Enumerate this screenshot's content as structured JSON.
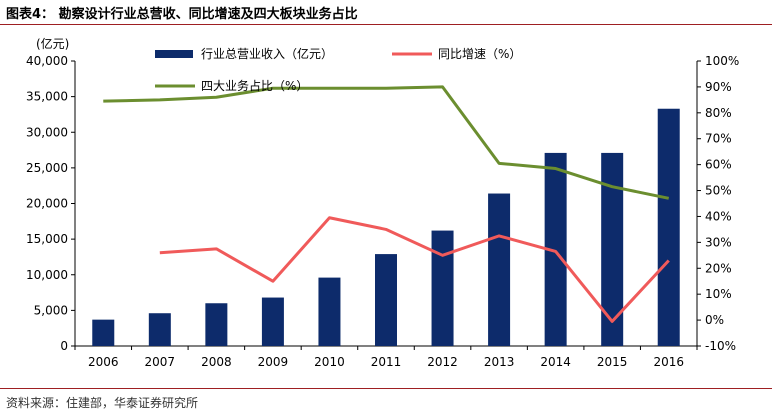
{
  "figure": {
    "title": "图表4：  勘察设计行业总营收、同比增速及四大板块业务占比",
    "source": "资料来源：住建部，华泰证券研究所"
  },
  "chart_data": {
    "type": "bar",
    "categories": [
      "2006",
      "2007",
      "2008",
      "2009",
      "2010",
      "2011",
      "2012",
      "2013",
      "2014",
      "2015",
      "2016"
    ],
    "y_left": {
      "unit_label": "(亿元)",
      "range": [
        0,
        40000
      ],
      "ticks": [
        "0",
        "5,000",
        "10,000",
        "15,000",
        "20,000",
        "25,000",
        "30,000",
        "35,000",
        "40,000"
      ]
    },
    "y_right": {
      "range": [
        -10,
        100
      ],
      "ticks": [
        "-10%",
        "0%",
        "10%",
        "20%",
        "30%",
        "40%",
        "50%",
        "60%",
        "70%",
        "80%",
        "90%",
        "100%"
      ]
    },
    "series": [
      {
        "name": "行业总营业收入（亿元）",
        "type": "bar",
        "axis": "left",
        "color": "#0d2b6b",
        "values": [
          3700,
          4600,
          6000,
          6800,
          9600,
          12900,
          16200,
          21400,
          27100,
          27100,
          33300
        ]
      },
      {
        "name": "同比增速（%）",
        "type": "line",
        "axis": "right",
        "color": "#f05a5a",
        "values": [
          null,
          26,
          27.5,
          15,
          39.5,
          35,
          25,
          32.5,
          26.5,
          -0.5,
          23
        ]
      },
      {
        "name": "四大业务占比（%）",
        "type": "line",
        "axis": "right",
        "color": "#6b8e2f",
        "values": [
          84.5,
          85,
          86,
          89.5,
          89.5,
          89.5,
          90,
          60.5,
          58.5,
          51.5,
          47
        ]
      }
    ],
    "legend_placement": "top-left",
    "grid": false
  }
}
